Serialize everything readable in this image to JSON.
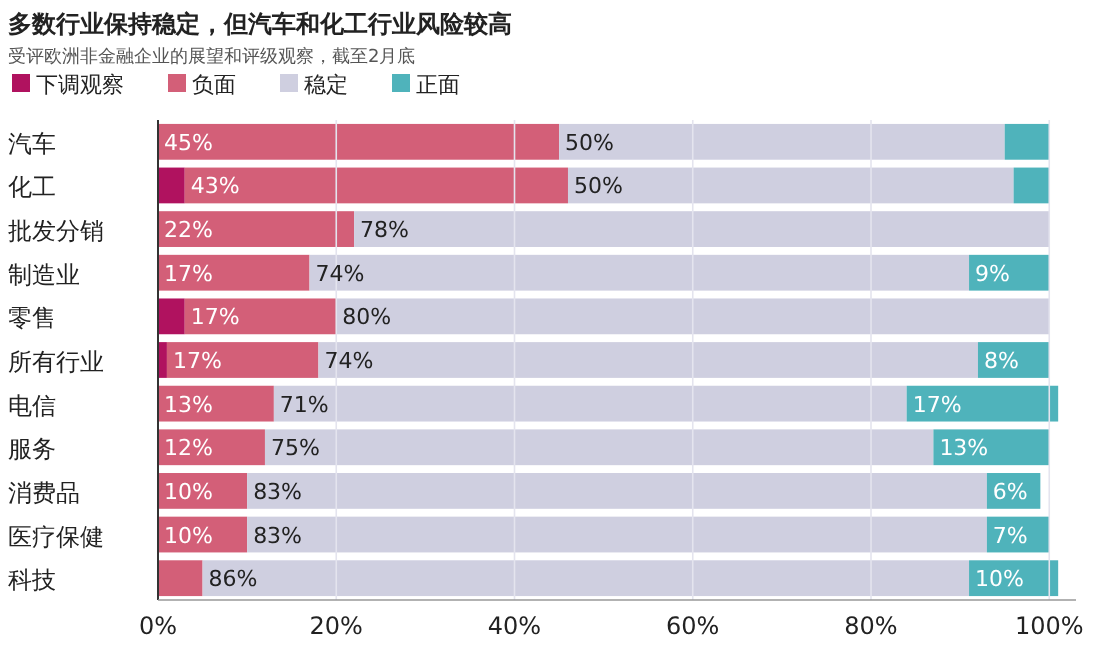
{
  "chart_data": {
    "type": "bar",
    "orientation": "horizontal",
    "stacked": true,
    "title": "多数行业保持稳定，但汽车和化工行业风险较高",
    "subtitle": "受评欧洲非金融企业的展望和评级观察，截至2月底",
    "categories": [
      "汽车",
      "化工",
      "批发分销",
      "制造业",
      "零售",
      "所有行业",
      "电信",
      "服务",
      "消费品",
      "医疗保健",
      "科技"
    ],
    "series": [
      {
        "name": "下调观察",
        "color": "#b0125f",
        "values": [
          0,
          3,
          0,
          0,
          3,
          1,
          0,
          0,
          0,
          0,
          0
        ],
        "value_labels": [
          null,
          null,
          null,
          null,
          null,
          null,
          null,
          null,
          null,
          null,
          null
        ]
      },
      {
        "name": "负面",
        "color": "#d35f78",
        "values": [
          45,
          43,
          22,
          17,
          17,
          17,
          13,
          12,
          10,
          10,
          5
        ],
        "value_labels": [
          "45%",
          "43%",
          "22%",
          "17%",
          "17%",
          "17%",
          "13%",
          "12%",
          "10%",
          "10%",
          null
        ]
      },
      {
        "name": "稳定",
        "color": "#cfcfe0",
        "values": [
          50,
          50,
          78,
          74,
          80,
          74,
          71,
          75,
          83,
          83,
          86
        ],
        "value_labels": [
          "50%",
          "50%",
          "78%",
          "74%",
          "80%",
          "74%",
          "71%",
          "75%",
          "83%",
          "83%",
          "86%"
        ]
      },
      {
        "name": "正面",
        "color": "#4fb3bb",
        "values": [
          5,
          4,
          0,
          9,
          0,
          8,
          17,
          13,
          6,
          7,
          10
        ],
        "value_labels": [
          null,
          null,
          null,
          "9%",
          null,
          "8%",
          "17%",
          "13%",
          "6%",
          "7%",
          "10%"
        ]
      }
    ],
    "xlim": [
      0,
      103
    ],
    "xticks": [
      {
        "value": 0,
        "label": "0%"
      },
      {
        "value": 20,
        "label": "20%"
      },
      {
        "value": 40,
        "label": "40%"
      },
      {
        "value": 60,
        "label": "60%"
      },
      {
        "value": 80,
        "label": "80%"
      },
      {
        "value": 100,
        "label": "100%"
      }
    ],
    "grid": "x",
    "legend": "top left"
  }
}
